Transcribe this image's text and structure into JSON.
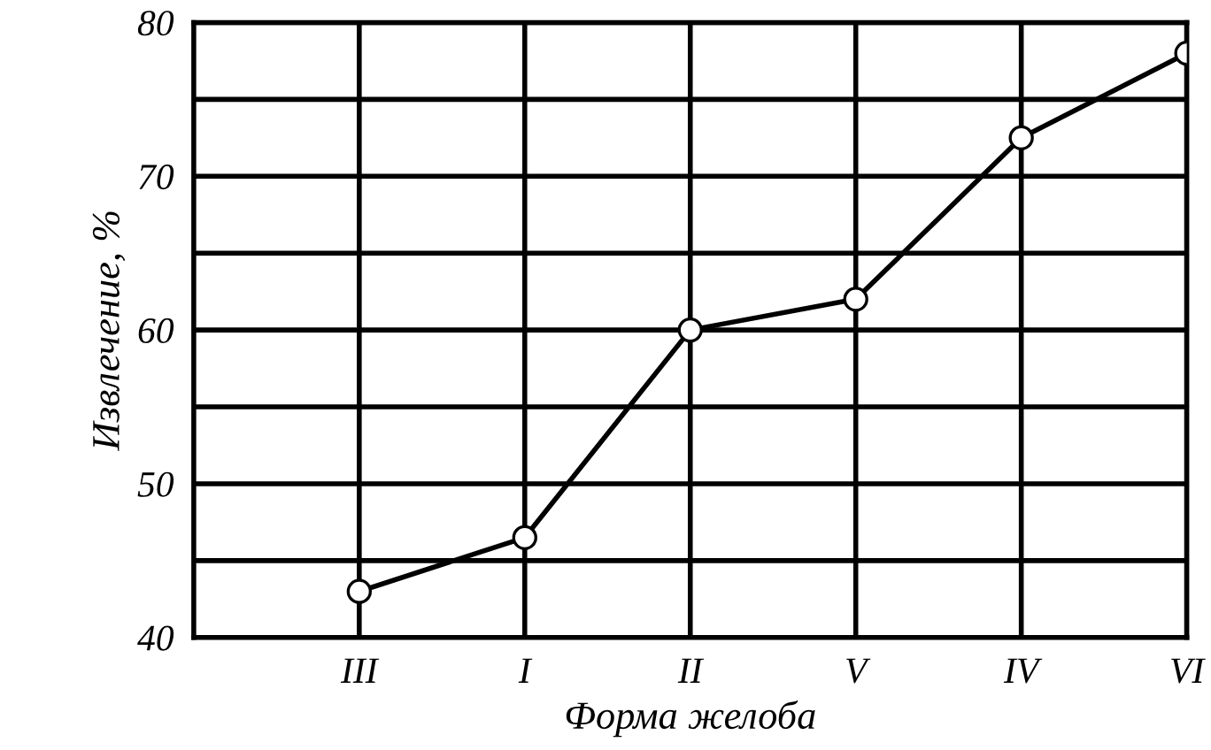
{
  "chart_data": {
    "type": "line",
    "xlabel": "Форма желоба",
    "ylabel": "Извлечение, %",
    "categories": [
      "III",
      "I",
      "II",
      "V",
      "IV",
      "VI"
    ],
    "series": [
      {
        "color": "#000000",
        "values": [
          43,
          46.5,
          60,
          62,
          72.5,
          78
        ]
      }
    ],
    "ylim": [
      40,
      80
    ],
    "yticks": [
      40,
      {
        "value": 45,
        "label": null
      },
      50,
      {
        "value": 55,
        "label": null
      },
      60,
      {
        "value": 65,
        "label": null
      },
      70,
      {
        "value": 75,
        "label": null
      },
      80
    ],
    "grid": true,
    "marker": "circle",
    "line_style": "solid",
    "legend": false
  }
}
